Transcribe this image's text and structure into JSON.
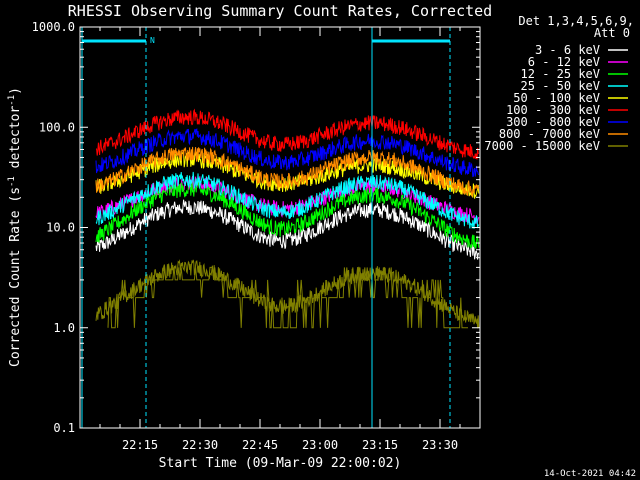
{
  "chart_data": {
    "type": "line",
    "title": "RHESSI Observing Summary Count Rates, Corrected",
    "xlabel": "Start Time (09-Mar-09 22:00:02)",
    "ylabel_main": "Corrected Count Rate (s",
    "ylabel_sup1": "-1",
    "ylabel_mid": " detector",
    "ylabel_sup2": "-1",
    "ylabel_end": ")",
    "yscale": "log",
    "ylim": [
      0.1,
      1000
    ],
    "xlim_minutes": [
      0,
      100
    ],
    "y_ticks": [
      {
        "value": 0.1,
        "label": "0.1"
      },
      {
        "value": 1,
        "label": "1.0"
      },
      {
        "value": 10,
        "label": "10.0"
      },
      {
        "value": 100,
        "label": "100.0"
      },
      {
        "value": 1000,
        "label": "1000.0"
      }
    ],
    "x_ticks": [
      {
        "minute": 15,
        "label": "22:15"
      },
      {
        "minute": 30,
        "label": "22:30"
      },
      {
        "minute": 45,
        "label": "22:45"
      },
      {
        "minute": 60,
        "label": "23:00"
      },
      {
        "minute": 75,
        "label": "23:15"
      },
      {
        "minute": 90,
        "label": "23:30"
      }
    ],
    "legend_header": [
      "Det 1,3,4,5,6,9,",
      "Att 0"
    ],
    "legend_position": "right",
    "series": [
      {
        "name": "3 - 6 keV",
        "color": "#ffffff",
        "base": 5,
        "peak1": 16,
        "peak2": 15
      },
      {
        "name": "6 - 12 keV",
        "color": "#ff00ff",
        "base": 12,
        "peak1": 28,
        "peak2": 26
      },
      {
        "name": "12 - 25 keV",
        "color": "#00ff00",
        "base": 6,
        "peak1": 24,
        "peak2": 21
      },
      {
        "name": "25 - 50 keV",
        "color": "#00ffff",
        "base": 10,
        "peak1": 30,
        "peak2": 28
      },
      {
        "name": "50 - 100 keV",
        "color": "#ffff00",
        "base": 22,
        "peak1": 48,
        "peak2": 42
      },
      {
        "name": "100 - 300 keV",
        "color": "#ff0000",
        "base": 53,
        "peak1": 126,
        "peak2": 110
      },
      {
        "name": "300 - 800 keV",
        "color": "#0000ff",
        "base": 35,
        "peak1": 82,
        "peak2": 73
      },
      {
        "name": "800 - 7000 keV",
        "color": "#ff8c00",
        "base": 22,
        "peak1": 55,
        "peak2": 50
      },
      {
        "name": "7000 - 15000 keV",
        "color": "#808000",
        "base": 1,
        "peak1": 4,
        "peak2": 3.5
      }
    ],
    "peak_centers_minutes": [
      27,
      73
    ],
    "peak_width_minutes": 11,
    "series_start_minute": 4,
    "gap_minutes": [
      14,
      16.5
    ],
    "lower_band_range_minutes": [
      7,
      97
    ],
    "annotation": "N",
    "intervals": {
      "solid_cyan_bars": [
        [
          0.5,
          16.5
        ],
        [
          73,
          92.5
        ]
      ],
      "dashed_markers": [
        16.5,
        92.5
      ],
      "solid_markers": [
        0.5,
        73
      ]
    }
  },
  "footer_timestamp": "14-Oct-2021 04:42"
}
